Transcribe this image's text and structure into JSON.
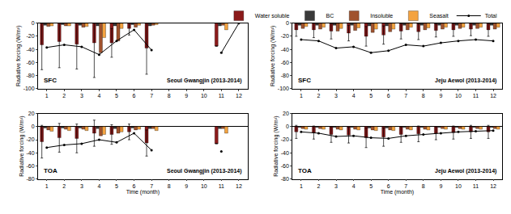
{
  "chart_data": [
    {
      "type": "bar",
      "annotations": [
        "SFC",
        "Seoul Gwangjin (2013-2014)"
      ],
      "y_label": "Radiative forcing (W/m²)",
      "x": [
        1,
        2,
        3,
        4,
        5,
        6,
        7,
        8,
        9,
        10,
        11,
        12
      ],
      "xlim": [
        0.5,
        12.5
      ],
      "xticks": [
        1,
        2,
        3,
        4,
        5,
        6,
        7,
        8,
        9,
        10,
        11,
        12
      ],
      "ylim": [
        -100,
        0
      ],
      "yticks": [
        -100,
        -80,
        -60,
        -40,
        -20,
        0
      ],
      "grid": false,
      "series": [
        {
          "name": "Water soluble",
          "color": "#8b1a1a",
          "values": [
            -33,
            -28,
            -32,
            -30,
            -30,
            -8,
            -38,
            null,
            null,
            null,
            -35,
            null
          ],
          "errors": [
            38,
            40,
            38,
            53,
            22,
            10,
            40,
            null,
            null,
            null,
            null,
            null
          ]
        },
        {
          "name": "BC",
          "color": "#3a3a3a",
          "values": [
            -3,
            -2,
            -3,
            -4,
            -4,
            -2,
            -4,
            null,
            null,
            null,
            -4,
            null
          ]
        },
        {
          "name": "Insoluble",
          "color": "#a0522d",
          "values": [
            -5,
            -4,
            -6,
            -45,
            -27,
            -6,
            -3,
            null,
            null,
            null,
            -3,
            null
          ]
        },
        {
          "name": "Seasalt",
          "color": "#f4a340",
          "values": [
            -4,
            -4,
            -5,
            -22,
            -8,
            -3,
            -2,
            null,
            null,
            null,
            -10,
            null
          ]
        },
        {
          "name": "Total",
          "type": "line",
          "color": "#000000",
          "marker": "circle",
          "values": [
            -37,
            -33,
            -36,
            -48,
            -27,
            -10,
            -41,
            null,
            null,
            null,
            -45,
            0
          ]
        }
      ]
    },
    {
      "type": "bar",
      "annotations": [
        "SFC",
        "Jeju Aewol (2013-2014)"
      ],
      "legend": "top",
      "y_label": "Radiative forcing (W/m²)",
      "x": [
        1,
        2,
        3,
        4,
        5,
        6,
        7,
        8,
        9,
        10,
        11,
        12
      ],
      "xlim": [
        0.5,
        12.5
      ],
      "xticks": [
        1,
        2,
        3,
        4,
        5,
        6,
        7,
        8,
        9,
        10,
        11,
        12
      ],
      "ylim": [
        -100,
        0
      ],
      "yticks": [
        -100,
        -80,
        -60,
        -40,
        -20,
        0
      ],
      "grid": false,
      "series": [
        {
          "name": "Water soluble",
          "color": "#8b1a1a",
          "values": [
            -10,
            -10,
            -12,
            -15,
            -20,
            -18,
            -12,
            -13,
            -11,
            -10,
            -9,
            -10
          ],
          "errors": [
            10,
            12,
            12,
            12,
            15,
            14,
            12,
            12,
            10,
            10,
            10,
            10
          ]
        },
        {
          "name": "BC",
          "color": "#3a3a3a",
          "values": [
            -3,
            -3,
            -3,
            -3,
            -4,
            -4,
            -3,
            -3,
            -3,
            -3,
            -3,
            -3
          ]
        },
        {
          "name": "Insoluble",
          "color": "#a0522d",
          "values": [
            -8,
            -9,
            -12,
            -11,
            -14,
            -13,
            -10,
            -10,
            -9,
            -8,
            -8,
            -9
          ]
        },
        {
          "name": "Seasalt",
          "color": "#f4a340",
          "values": [
            -5,
            -6,
            -8,
            -7,
            -9,
            -9,
            -6,
            -7,
            -6,
            -6,
            -6,
            -6
          ]
        },
        {
          "name": "Total",
          "type": "line",
          "color": "#000000",
          "marker": "circle",
          "values": [
            -25,
            -27,
            -38,
            -36,
            -45,
            -42,
            -33,
            -35,
            -30,
            -27,
            -25,
            -27
          ]
        }
      ]
    },
    {
      "type": "bar",
      "annotations": [
        "TOA",
        "Seoul Gwangjin (2013-2014)"
      ],
      "y_label": "Radiative forcing (W/m²)",
      "x_label": "Time (month)",
      "x": [
        1,
        2,
        3,
        4,
        5,
        6,
        7,
        8,
        9,
        10,
        11,
        12
      ],
      "xlim": [
        0.5,
        12.5
      ],
      "xticks": [
        1,
        2,
        3,
        4,
        5,
        6,
        7,
        8,
        9,
        10,
        11,
        12
      ],
      "ylim": [
        -80,
        20
      ],
      "yticks": [
        -80,
        -60,
        -40,
        -20,
        0,
        20
      ],
      "grid": false,
      "series": [
        {
          "name": "Water soluble",
          "color": "#8b1a1a",
          "values": [
            -23,
            -17,
            -18,
            -10,
            -12,
            -8,
            -25,
            null,
            null,
            null,
            -26,
            null
          ],
          "errors": [
            25,
            22,
            22,
            20,
            15,
            12,
            20,
            null,
            null,
            null,
            null,
            null
          ]
        },
        {
          "name": "BC",
          "color": "#3a3a3a",
          "values": [
            -2,
            -2,
            -2,
            -3,
            -3,
            -2,
            -3,
            null,
            null,
            null,
            -3,
            null
          ]
        },
        {
          "name": "Insoluble",
          "color": "#a0522d",
          "values": [
            -5,
            -4,
            -4,
            -14,
            -10,
            -5,
            -3,
            null,
            null,
            null,
            -3,
            null
          ]
        },
        {
          "name": "Seasalt",
          "color": "#f4a340",
          "values": [
            -7,
            -6,
            -6,
            -12,
            -8,
            -4,
            -6,
            null,
            null,
            null,
            -10,
            null
          ]
        },
        {
          "name": "Total",
          "type": "line",
          "color": "#000000",
          "marker": "circle",
          "values": [
            -32,
            -28,
            -26,
            -20,
            -24,
            -10,
            -36,
            null,
            null,
            null,
            -38,
            null
          ]
        }
      ]
    },
    {
      "type": "bar",
      "annotations": [
        "TOA",
        "Jeju Aewol (2013-2014)"
      ],
      "y_label": "Radiative forcing (W/m²)",
      "x_label": "Time (month)",
      "x": [
        1,
        2,
        3,
        4,
        5,
        6,
        7,
        8,
        9,
        10,
        11,
        12
      ],
      "xlim": [
        0.5,
        12.5
      ],
      "xticks": [
        1,
        2,
        3,
        4,
        5,
        6,
        7,
        8,
        9,
        10,
        11,
        12
      ],
      "ylim": [
        -80,
        20
      ],
      "yticks": [
        -80,
        -60,
        -40,
        -20,
        0,
        20
      ],
      "grid": false,
      "series": [
        {
          "name": "Water soluble",
          "color": "#8b1a1a",
          "values": [
            -8,
            -9,
            -12,
            -13,
            -17,
            -16,
            -12,
            -11,
            -10,
            -9,
            -8,
            -8
          ],
          "errors": [
            10,
            10,
            12,
            12,
            15,
            14,
            12,
            12,
            10,
            10,
            10,
            10
          ]
        },
        {
          "name": "BC",
          "color": "#3a3a3a",
          "values": [
            -1,
            -1,
            -1,
            -1,
            -2,
            -2,
            -1,
            -1,
            -1,
            -1,
            -1,
            -1
          ]
        },
        {
          "name": "Insoluble",
          "color": "#a0522d",
          "values": [
            -3,
            -3,
            -4,
            -4,
            -5,
            -5,
            -4,
            -4,
            -3,
            -3,
            -3,
            -3
          ]
        },
        {
          "name": "Seasalt",
          "color": "#f4a340",
          "values": [
            -4,
            -4,
            -5,
            -5,
            -6,
            -6,
            -5,
            -5,
            -4,
            -4,
            -4,
            -4
          ]
        },
        {
          "name": "Total",
          "type": "line",
          "color": "#000000",
          "marker": "circle",
          "values": [
            -8,
            -10,
            -15,
            -14,
            -17,
            -18,
            -14,
            -12,
            -10,
            -8,
            -7,
            -6
          ]
        }
      ]
    }
  ]
}
